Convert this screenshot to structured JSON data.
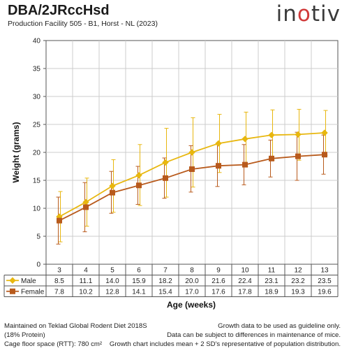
{
  "header": {
    "title": "DBA/2JRccHsd",
    "subtitle": "Production Facility 505 - B1, Horst - NL (2023)",
    "logo_text": "in",
    "logo_text_accent": "o",
    "logo_text_end": "tiv"
  },
  "footer": {
    "left_lines": [
      "Maintained on Teklad Global Rodent Diet 2018S",
      "(18% Protein)",
      "Cage floor space (RTT): 780 cm²"
    ],
    "right_lines": [
      "Growth data to be used as guideline only.",
      "Data can be subject to differences in maintenance of mice.",
      "Growth chart includes mean + 2 SD's representative of population distribution."
    ]
  },
  "colors": {
    "male": "#e8b70f",
    "female": "#b85a1c",
    "grid": "#cccccc",
    "axis": "#555555"
  },
  "chart_data": {
    "type": "line",
    "xlabel": "Age (weeks)",
    "ylabel": "Weight (grams)",
    "ylim": [
      0,
      40
    ],
    "yticks": [
      0,
      5,
      10,
      15,
      20,
      25,
      30,
      35,
      40
    ],
    "categories": [
      "3",
      "4",
      "5",
      "6",
      "7",
      "8",
      "9",
      "10",
      "11",
      "12",
      "13"
    ],
    "grid": "vertical and horizontal",
    "legend": "data table below x-axis",
    "series": [
      {
        "name": "Male",
        "marker": "diamond",
        "values": [
          8.5,
          11.1,
          14.0,
          15.9,
          18.2,
          20.0,
          21.6,
          22.4,
          23.1,
          23.2,
          23.5
        ],
        "error_low": [
          4.0,
          6.8,
          9.3,
          10.5,
          12.0,
          13.8,
          16.4,
          17.5,
          18.6,
          18.6,
          19.5
        ],
        "error_high": [
          13.0,
          15.4,
          18.7,
          21.4,
          24.3,
          26.2,
          26.8,
          27.2,
          27.6,
          27.7,
          27.5
        ]
      },
      {
        "name": "Female",
        "marker": "square",
        "values": [
          7.8,
          10.2,
          12.8,
          14.1,
          15.4,
          17.0,
          17.6,
          17.8,
          18.9,
          19.3,
          19.6
        ],
        "error_low": [
          3.6,
          5.8,
          9.1,
          10.7,
          11.8,
          12.9,
          13.9,
          14.2,
          15.6,
          15.0,
          16.1
        ],
        "error_high": [
          12.0,
          14.6,
          16.6,
          17.5,
          19.0,
          21.2,
          21.4,
          21.4,
          22.2,
          23.6,
          23.1
        ]
      }
    ],
    "table_rows": [
      {
        "label": "Male",
        "values": [
          "8.5",
          "11.1",
          "14.0",
          "15.9",
          "18.2",
          "20.0",
          "21.6",
          "22.4",
          "23.1",
          "23.2",
          "23.5"
        ]
      },
      {
        "label": "Female",
        "values": [
          "7.8",
          "10.2",
          "12.8",
          "14.1",
          "15.4",
          "17.0",
          "17.6",
          "17.8",
          "18.9",
          "19.3",
          "19.6"
        ]
      }
    ]
  }
}
